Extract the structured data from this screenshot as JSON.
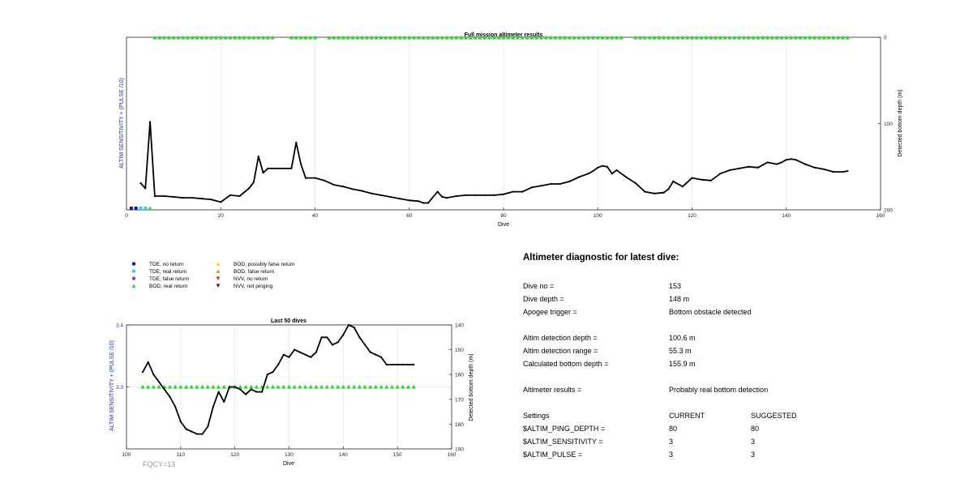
{
  "charts": {
    "full": {
      "title": "Full mission altimeter results",
      "xlabel": "Dive",
      "ylabel_left": "ALTIM SENSITIVITY + (PULSE /10)",
      "ylabel_right": "Detected bottom depth (m)",
      "xticks": [
        "0",
        "20",
        "40",
        "60",
        "80",
        "100",
        "120",
        "140",
        "160"
      ],
      "yticks_right": [
        "0",
        "100",
        "200"
      ]
    },
    "last": {
      "title": "Last 50 dives",
      "xlabel": "Dive",
      "ylabel_left": "ALTIM SENSITIVITY + (PULSE /10)",
      "ylabel_right": "Detected bottom depth (m)",
      "xticks": [
        "100",
        "110",
        "120",
        "130",
        "140",
        "150",
        "160"
      ],
      "yticks_left": [
        "3.4",
        "3.3"
      ],
      "yticks_right": [
        "140",
        "150",
        "160",
        "170",
        "180",
        "190"
      ]
    }
  },
  "chart_data": [
    {
      "type": "line",
      "title": "Full mission altimeter results",
      "xlabel": "Dive",
      "ylabel": "ALTIM SENSITIVITY + (PULSE /10)",
      "y2label": "Detected bottom depth (m)",
      "xlim": [
        0,
        160
      ],
      "y2lim": [
        0,
        200
      ],
      "y2_reversed": true,
      "grid": true,
      "series": [
        {
          "name": "Detected bottom depth",
          "axis": "right",
          "x": [
            3,
            4,
            5,
            6,
            8,
            10,
            12,
            14,
            16,
            18,
            20,
            22,
            24,
            26,
            27,
            28,
            29,
            30,
            35,
            36,
            37,
            38,
            40,
            42,
            44,
            46,
            48,
            50,
            52,
            54,
            56,
            58,
            60,
            62,
            63,
            64,
            66,
            67,
            68,
            70,
            72,
            74,
            76,
            78,
            80,
            82,
            84,
            86,
            88,
            90,
            92,
            94,
            96,
            98,
            99,
            100,
            101,
            102,
            103,
            104,
            106,
            108,
            110,
            112,
            114,
            115,
            116,
            118,
            120,
            122,
            124,
            126,
            128,
            130,
            132,
            134,
            135,
            136,
            138,
            139,
            140,
            141,
            142,
            144,
            146,
            148,
            150,
            152,
            153
          ],
          "y": [
            169,
            175,
            98,
            184,
            184,
            185,
            186,
            186,
            187,
            188,
            191,
            183,
            184,
            175,
            168,
            138,
            157,
            152,
            152,
            122,
            147,
            163,
            163,
            166,
            171,
            173,
            176,
            178,
            181,
            183,
            185,
            187,
            189,
            190,
            192,
            192,
            179,
            185,
            186,
            184,
            183,
            183,
            183,
            183,
            182,
            179,
            179,
            174,
            172,
            170,
            170,
            167,
            162,
            158,
            155,
            151,
            149,
            150,
            158,
            154,
            162,
            169,
            179,
            181,
            180,
            176,
            167,
            173,
            163,
            165,
            166,
            158,
            154,
            152,
            150,
            151,
            148,
            145,
            147,
            145,
            142,
            141,
            142,
            147,
            151,
            153,
            156,
            156,
            155
          ]
        },
        {
          "name": "BOD, real return",
          "axis": "left",
          "x_ranges": [
            [
              5,
              31
            ],
            [
              34,
              40
            ],
            [
              42,
              105
            ],
            [
              107,
              153
            ]
          ],
          "y_note": "shown along top at depth 0 and at dives 5"
        },
        {
          "name": "TDE, no return",
          "axis": "left",
          "x": [
            1,
            2
          ]
        },
        {
          "name": "TDE, real return",
          "axis": "left",
          "x": [
            3,
            4
          ]
        }
      ]
    },
    {
      "type": "line",
      "title": "Last 50 dives",
      "xlabel": "Dive",
      "ylabel": "ALTIM SENSITIVITY + (PULSE /10)",
      "y2label": "Detected bottom depth (m)",
      "xlim": [
        100,
        160
      ],
      "ylim": [
        3.2,
        3.4
      ],
      "y2lim": [
        140,
        190
      ],
      "y2_reversed": true,
      "grid": true,
      "series": [
        {
          "name": "Detected bottom depth",
          "axis": "right",
          "x": [
            103,
            104,
            105,
            106,
            107,
            108,
            109,
            110,
            111,
            112,
            113,
            114,
            115,
            116,
            117,
            118,
            119,
            120,
            121,
            122,
            123,
            124,
            125,
            126,
            127,
            128,
            129,
            130,
            131,
            132,
            133,
            134,
            135,
            136,
            137,
            138,
            139,
            140,
            141,
            142,
            143,
            144,
            145,
            146,
            147,
            148,
            149,
            150,
            151,
            152,
            153
          ],
          "y": [
            159,
            155,
            160,
            163,
            166,
            169,
            173,
            179,
            182,
            183,
            184,
            184,
            181,
            173,
            167,
            171,
            165,
            165,
            166,
            168,
            166,
            167,
            167,
            160,
            159,
            156,
            152,
            153,
            150,
            151,
            152,
            153,
            151,
            145,
            145,
            148,
            147,
            144,
            140,
            141,
            145,
            148,
            151,
            152,
            153,
            156,
            156,
            156,
            156,
            156,
            156
          ]
        },
        {
          "name": "BOD, real return",
          "axis": "left",
          "x_range": [
            103,
            153
          ],
          "y": 3.3
        }
      ]
    }
  ],
  "legend": [
    {
      "label": "TDE, no return",
      "symbol": "■",
      "color": "#0a1aa8"
    },
    {
      "label": "TDE, real return",
      "symbol": "■",
      "color": "#2ad4f0"
    },
    {
      "label": "TDE, false return",
      "symbol": "■",
      "color": "#6a4bd6"
    },
    {
      "label": "BOD, real return",
      "symbol": "▲",
      "color": "#22dd22"
    },
    {
      "label": "BOD, possibly false return",
      "symbol": "▲",
      "color": "#f5d415"
    },
    {
      "label": "BOD, false return",
      "symbol": "▲",
      "color": "#f0901a"
    },
    {
      "label": "NVV, no return",
      "symbol": "▼",
      "color": "#e03010"
    },
    {
      "label": "NVV, not pinging",
      "symbol": "▼",
      "color": "#7a1010"
    }
  ],
  "colors": {
    "line": "#000000",
    "bod_real": "#22dd22",
    "axis_left_label": "#2929b8",
    "grid": "#e6e6e6"
  },
  "diagnostic": {
    "title": "Altimeter diagnostic for latest dive:",
    "rows": [
      {
        "label": "Dive no =",
        "value": "153"
      },
      {
        "label": "Dive depth =",
        "value": "148 m"
      },
      {
        "label": "Apogee trigger =",
        "value": "Bottom obstacle detected"
      },
      {
        "label": "Altim detection depth =",
        "value": "100.6 m"
      },
      {
        "label": "Altim detection range =",
        "value": "55.3 m"
      },
      {
        "label": "Calculated bottom depth =",
        "value": "155.9 m"
      },
      {
        "label": "Altimeter results =",
        "value": "Probably real bottom detection"
      }
    ],
    "settings_header": {
      "label": "Settings",
      "current": "CURRENT",
      "suggested": "SUGGESTED"
    },
    "settings": [
      {
        "label": "$ALTIM_PING_DEPTH =",
        "current": "80",
        "suggested": "80"
      },
      {
        "label": "$ALTIM_SENSITIVITY =",
        "current": "3",
        "suggested": "3"
      },
      {
        "label": "$ALTIM_PULSE =",
        "current": "3",
        "suggested": "3"
      }
    ]
  },
  "footer": {
    "fqcy": "FQCY=13"
  }
}
